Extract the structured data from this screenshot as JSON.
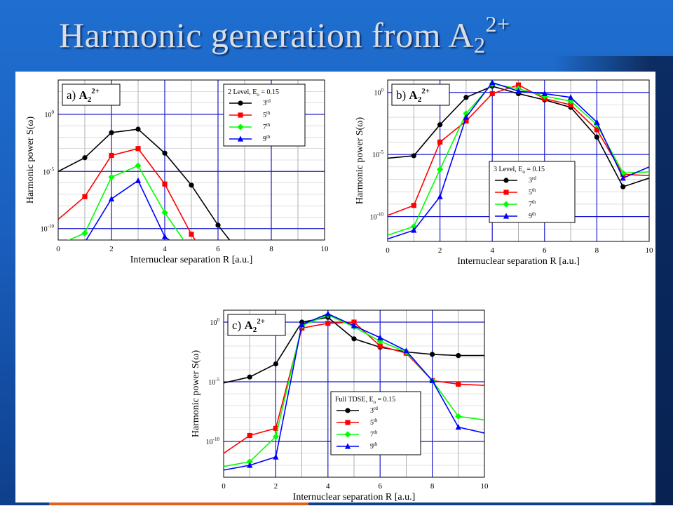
{
  "slide": {
    "title_main": "Harmonic generation from A",
    "title_sub": "2",
    "title_sup": "2+"
  },
  "colors": {
    "harmonic_3": "#000000",
    "harmonic_5": "#ff0000",
    "harmonic_7": "#00ff00",
    "harmonic_9": "#0000ff",
    "grid_major": "#1a1acc",
    "grid_minor": "#9a9a9a"
  },
  "chart_data": [
    {
      "type": "line",
      "panel_label": "a) A",
      "panel_sub": "2",
      "panel_sup": "2+",
      "legend_title": "2 Level, E",
      "legend_title_sub": "o",
      "legend_title_rest": " = 0.15",
      "legend_placement": "top-right",
      "xlabel": "Internuclear separation R [a.u.]",
      "ylabel": "Harmonic power S(ω)",
      "xlim": [
        0,
        10
      ],
      "ylim_log10": [
        -11,
        3
      ],
      "x_ticks": [
        "0",
        "2",
        "4",
        "6",
        "8",
        "10"
      ],
      "y_ticks": [
        {
          "base": "10",
          "exp": "0",
          "v": 0
        },
        {
          "base": "10",
          "exp": "-5",
          "v": -5
        },
        {
          "base": "10",
          "exp": "-10",
          "v": -10
        }
      ],
      "series": [
        {
          "name": "3",
          "ord": "rd",
          "x": [
            0,
            1,
            2,
            3,
            4,
            5,
            6,
            7
          ],
          "log10y": [
            -5,
            -3.8,
            -1.6,
            -1.3,
            -3.4,
            -6.2,
            -9.7,
            -12.7
          ]
        },
        {
          "name": "5",
          "ord": "th",
          "x": [
            0,
            1,
            2,
            3,
            4,
            5,
            6
          ],
          "log10y": [
            -9.2,
            -7.2,
            -3.6,
            -3.0,
            -6.1,
            -10.5,
            -14
          ]
        },
        {
          "name": "7",
          "ord": "th",
          "x": [
            0,
            1,
            2,
            3,
            4,
            5
          ],
          "log10y": [
            -11.4,
            -10.4,
            -5.5,
            -4.5,
            -8.6,
            -12
          ]
        },
        {
          "name": "9",
          "ord": "th",
          "x": [
            0,
            1,
            2,
            3,
            4,
            5
          ],
          "log10y": [
            -12,
            -11.2,
            -7.4,
            -5.8,
            -10.7,
            -12.5
          ]
        }
      ]
    },
    {
      "type": "line",
      "panel_label": "b) A",
      "panel_sub": "2",
      "panel_sup": "2+",
      "legend_title": "3 Level, E",
      "legend_title_sub": "o",
      "legend_title_rest": " = 0.15",
      "legend_placement": "bottom-right",
      "xlabel": "Internuclear separation R [a.u.]",
      "ylabel": "Harmonic power S(ω)",
      "xlim": [
        0,
        10
      ],
      "ylim_log10": [
        -12,
        1
      ],
      "x_ticks": [
        "0",
        "2",
        "4",
        "6",
        "8",
        "10"
      ],
      "y_ticks": [
        {
          "base": "10",
          "exp": "0",
          "v": 0
        },
        {
          "base": "10",
          "exp": "-5",
          "v": -5
        },
        {
          "base": "10",
          "exp": "-10",
          "v": -10
        }
      ],
      "series": [
        {
          "name": "3",
          "ord": "rd",
          "x": [
            0,
            1,
            2,
            3,
            4,
            5,
            6,
            7,
            8,
            9,
            10
          ],
          "log10y": [
            -5.3,
            -5.1,
            -2.6,
            -0.4,
            0.5,
            -0.1,
            -0.6,
            -1.2,
            -3.6,
            -7.6,
            -6.9
          ]
        },
        {
          "name": "5",
          "ord": "th",
          "x": [
            0,
            1,
            2,
            3,
            4,
            5,
            6,
            7,
            8,
            9,
            10
          ],
          "log10y": [
            -9.9,
            -9.1,
            -4.0,
            -2.3,
            -0.1,
            0.6,
            -0.5,
            -1.0,
            -3.0,
            -6.6,
            -6.7
          ]
        },
        {
          "name": "7",
          "ord": "th",
          "x": [
            0,
            1,
            2,
            3,
            4,
            5,
            6,
            7,
            8,
            9,
            10
          ],
          "log10y": [
            -11.5,
            -10.8,
            -6.2,
            -1.7,
            0.7,
            0.3,
            -0.3,
            -0.7,
            -2.6,
            -6.5,
            -6.4
          ]
        },
        {
          "name": "9",
          "ord": "th",
          "x": [
            0,
            1,
            2,
            3,
            4,
            5,
            6,
            7,
            8,
            9,
            10
          ],
          "log10y": [
            -11.8,
            -11.1,
            -8.4,
            -2.0,
            0.8,
            0.1,
            -0.1,
            -0.4,
            -2.4,
            -6.9,
            -6.0
          ]
        }
      ]
    },
    {
      "type": "line",
      "panel_label": "c) A",
      "panel_sub": "2",
      "panel_sup": "2+",
      "legend_title": "Full TDSE, E",
      "legend_title_sub": "o",
      "legend_title_rest": " = 0.15",
      "legend_placement": "bottom-right",
      "xlabel": "Internuclear separation R [a.u.]",
      "ylabel": "Harmonic power S(ω)",
      "xlim": [
        0,
        10
      ],
      "ylim_log10": [
        -13,
        1
      ],
      "x_ticks": [
        "0",
        "2",
        "4",
        "6",
        "8",
        "10"
      ],
      "y_ticks": [
        {
          "base": "10",
          "exp": "0",
          "v": 0
        },
        {
          "base": "10",
          "exp": "-5",
          "v": -5
        },
        {
          "base": "10",
          "exp": "-10",
          "v": -10
        }
      ],
      "series": [
        {
          "name": "3",
          "ord": "rd",
          "x": [
            0,
            1,
            2,
            3,
            4,
            5,
            6,
            7,
            8,
            9,
            10
          ],
          "log10y": [
            -5.1,
            -4.6,
            -3.5,
            0.0,
            0.4,
            -1.4,
            -2.1,
            -2.5,
            -2.7,
            -2.8,
            -2.8
          ]
        },
        {
          "name": "5",
          "ord": "th",
          "x": [
            0,
            1,
            2,
            3,
            4,
            5,
            6,
            7,
            8,
            9,
            10
          ],
          "log10y": [
            -11.0,
            -9.5,
            -8.9,
            -0.5,
            -0.1,
            0.0,
            -2.0,
            -2.6,
            -4.9,
            -5.2,
            -5.3
          ]
        },
        {
          "name": "7",
          "ord": "th",
          "x": [
            0,
            1,
            2,
            3,
            4,
            5,
            6,
            7,
            8,
            9,
            10
          ],
          "log10y": [
            -12.1,
            -11.7,
            -9.6,
            -0.3,
            0.6,
            -0.4,
            -1.6,
            -2.5,
            -4.9,
            -7.9,
            -8.2
          ]
        },
        {
          "name": "9",
          "ord": "th",
          "x": [
            0,
            1,
            2,
            3,
            4,
            5,
            6,
            7,
            8,
            9,
            10
          ],
          "log10y": [
            -12.4,
            -12.0,
            -11.3,
            -0.2,
            0.7,
            -0.3,
            -1.3,
            -2.4,
            -4.9,
            -8.8,
            -9.3
          ]
        }
      ]
    }
  ]
}
